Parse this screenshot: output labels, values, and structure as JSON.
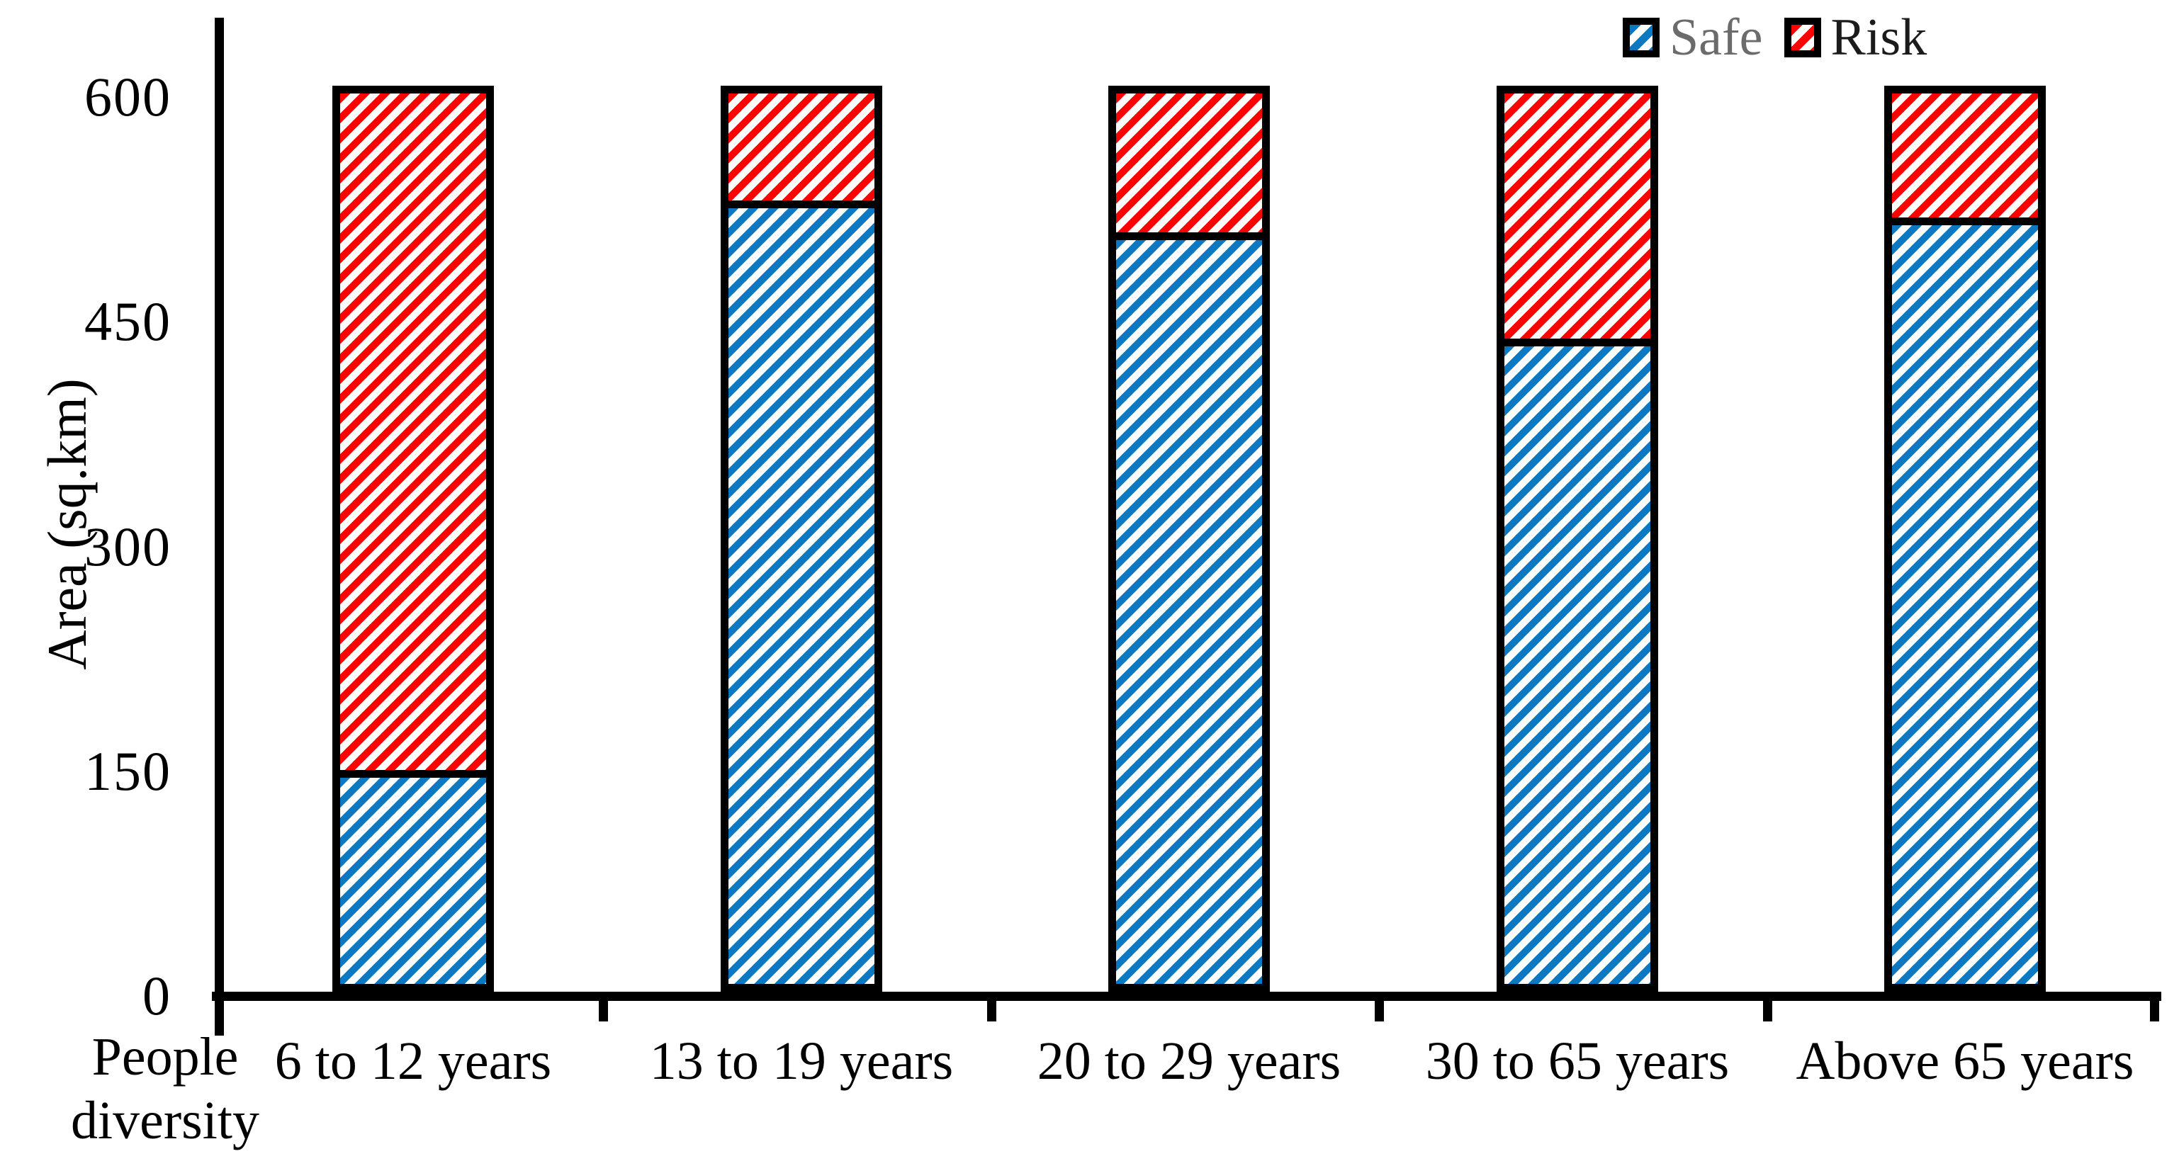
{
  "chart_data": {
    "type": "bar",
    "stacked": true,
    "title": "",
    "categories": [
      "6 to 12 years",
      "13 to 19 years",
      "20 to 29 years",
      "30 to 65 years",
      "Above 65 years"
    ],
    "series": [
      {
        "name": "Safe",
        "color": "#0c78c2",
        "label_color": "#6b6b6b",
        "values": [
          148,
          528,
          507,
          436,
          517
        ]
      },
      {
        "name": "Risk",
        "color": "#fe0000",
        "label_color": "#1b1b1b",
        "values": [
          462,
          82,
          103,
          174,
          93
        ]
      }
    ],
    "stack_totals": [
      610,
      610,
      610,
      610,
      610
    ],
    "xlabel": "People diversity",
    "ylabel": "Area (sq.km)",
    "yticks": [
      0,
      150,
      300,
      450,
      600
    ],
    "ylim": [
      0,
      620
    ],
    "grid": false,
    "legend_position": "top-right",
    "hatch": "forward-diagonal-stripes",
    "bar_outline_color": "#000000",
    "axis_color": "#000000",
    "background_color": "#ffffff"
  }
}
